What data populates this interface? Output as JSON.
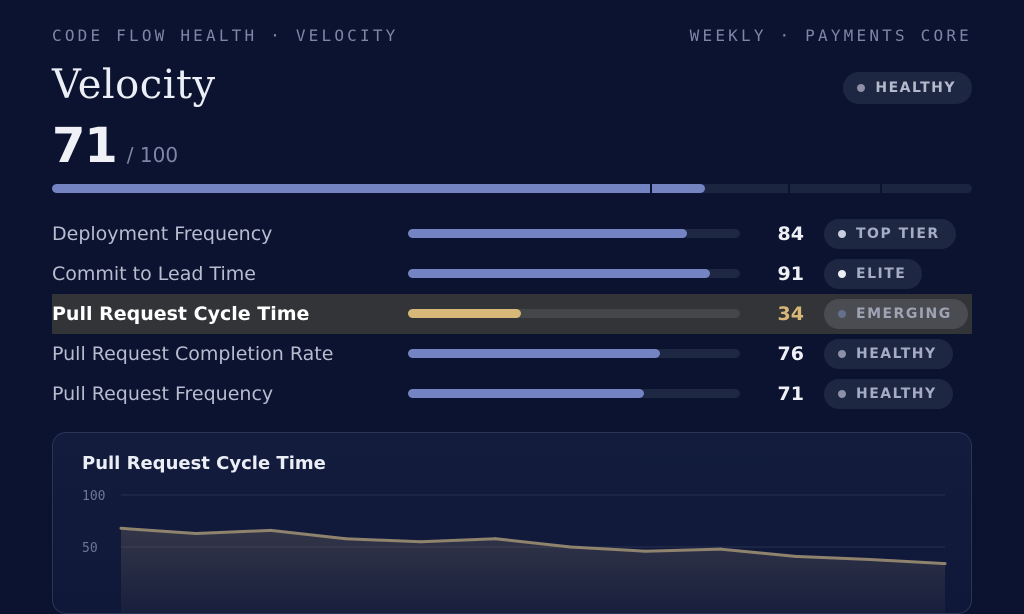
{
  "header": {
    "breadcrumb": "CODE FLOW HEALTH · VELOCITY",
    "context": "WEEKLY · PAYMENTS CORE",
    "title": "Velocity",
    "status": "HEALTHY"
  },
  "overall": {
    "score": "71",
    "max": "/ 100",
    "progress_fraction": 0.71
  },
  "metrics": [
    {
      "name": "Deployment Frequency",
      "value": "84",
      "badge": "TOP TIER",
      "level": 84,
      "selected": false
    },
    {
      "name": "Commit to Lead Time",
      "value": "91",
      "badge": "ELITE",
      "level": 91,
      "selected": false
    },
    {
      "name": "Pull Request Cycle Time",
      "value": "34",
      "badge": "EMERGING",
      "level": 34,
      "selected": true
    },
    {
      "name": "Pull Request Completion Rate",
      "value": "76",
      "badge": "HEALTHY",
      "level": 76,
      "selected": false
    },
    {
      "name": "Pull Request Frequency",
      "value": "71",
      "badge": "HEALTHY",
      "level": 71,
      "selected": false
    }
  ],
  "colors": {
    "accent": "#7483c2",
    "highlight": "#d7b878",
    "background": "#0c1330"
  },
  "chart_data": {
    "type": "area",
    "title": "Pull Request Cycle Time",
    "xlabel": "",
    "ylabel": "",
    "ylim": [
      0,
      100
    ],
    "yticks": [
      "100",
      "50"
    ],
    "ytick_values": [
      100,
      50
    ],
    "grid": true,
    "x": [
      1,
      2,
      3,
      4,
      5,
      6,
      7,
      8,
      9,
      10,
      11,
      12
    ],
    "values": [
      68,
      63,
      66,
      58,
      55,
      58,
      50,
      46,
      48,
      41,
      38,
      34
    ]
  }
}
